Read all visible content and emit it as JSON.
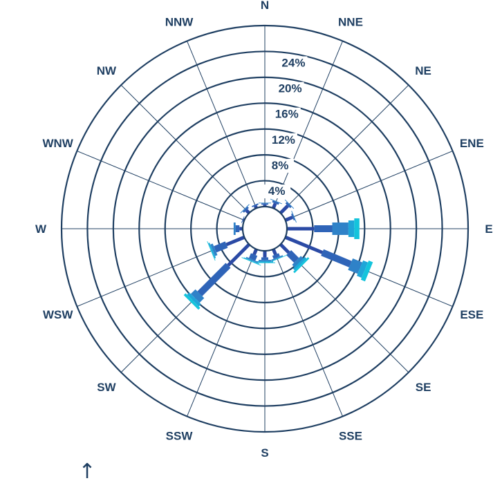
{
  "chart_data": {
    "type": "rose",
    "title": "",
    "directions": [
      "N",
      "NNE",
      "NE",
      "ENE",
      "E",
      "ESE",
      "SE",
      "SSE",
      "S",
      "SSW",
      "SW",
      "WSW",
      "W",
      "WNW",
      "NW",
      "NNW"
    ],
    "radial_ticks": [
      "4%",
      "8%",
      "12%",
      "16%",
      "20%",
      "24%"
    ],
    "radial_tick_values": [
      4,
      8,
      12,
      16,
      20,
      24
    ],
    "rmax": 28,
    "grid": true,
    "series": [
      {
        "color": "#2b4aa5",
        "values": [
          0.3,
          0.8,
          1.6,
          1.2,
          4.2,
          6.2,
          1.8,
          0.9,
          1.0,
          0.9,
          4.6,
          3.0,
          0.5,
          0.2,
          0.6,
          0.4
        ]
      },
      {
        "color": "#2f64b8",
        "values": [
          0.2,
          0.3,
          0.3,
          0.2,
          2.8,
          4.7,
          1.7,
          0.5,
          0.4,
          0.8,
          6.2,
          1.9,
          0.6,
          0.1,
          0.3,
          0.2
        ]
      },
      {
        "color": "#2f82c8",
        "values": [
          0.1,
          0.1,
          0.1,
          0.1,
          2.5,
          1.6,
          0.5,
          0.2,
          0.2,
          0.2,
          1.0,
          0.4,
          0.3,
          0.0,
          0.1,
          0.0
        ]
      },
      {
        "color": "#1fa6d8",
        "values": [
          0.0,
          0.0,
          0.0,
          0.0,
          0.9,
          0.8,
          0.4,
          0.0,
          0.2,
          0.1,
          0.5,
          0.2,
          0.0,
          0.0,
          0.0,
          0.0
        ]
      },
      {
        "color": "#14c4dc",
        "values": [
          0.0,
          0.0,
          0.0,
          0.0,
          0.8,
          0.7,
          0.3,
          0.1,
          0.1,
          0.1,
          0.4,
          0.1,
          0.0,
          0.0,
          0.0,
          0.0
        ]
      }
    ]
  },
  "north_arrow": {
    "icon": "arrow-up-icon",
    "glyph": "↑"
  }
}
